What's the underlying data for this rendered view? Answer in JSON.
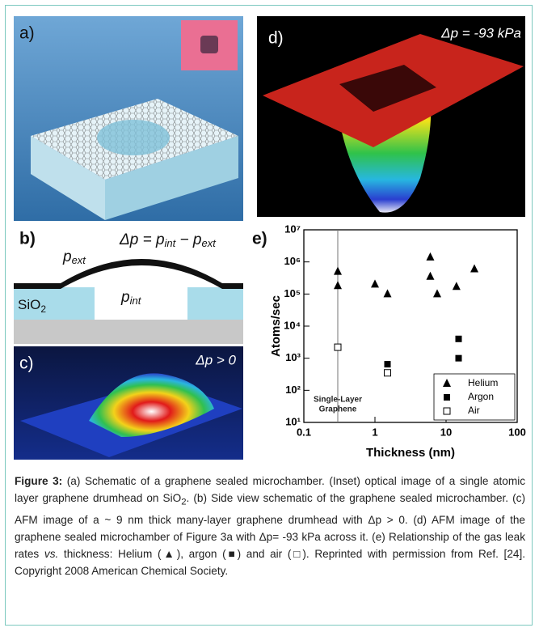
{
  "panels": {
    "a": {
      "label": "a)"
    },
    "b": {
      "label": "b)",
      "equation": [
        "Δp = p",
        "int",
        " − p",
        "ext"
      ],
      "p_ext": [
        "p",
        "ext"
      ],
      "p_int": [
        "p",
        "int"
      ],
      "substrate": [
        "SiO",
        "2"
      ]
    },
    "c": {
      "label": "c)",
      "annotation": "Δp > 0"
    },
    "d": {
      "label": "d)",
      "annotation": "Δp = -93 kPa"
    }
  },
  "chart_data": {
    "type": "scatter",
    "panel_label": "e)",
    "xlabel": "Thickness (nm)",
    "ylabel": "Atoms/sec",
    "xscale": "log",
    "yscale": "log",
    "xlim": [
      0.1,
      100
    ],
    "ylim": [
      10,
      10000000
    ],
    "xticks": [
      0.1,
      1,
      10,
      100
    ],
    "yticks": [
      {
        "value": 10,
        "label": "10¹"
      },
      {
        "value": 100,
        "label": "10²"
      },
      {
        "value": 1000,
        "label": "10³"
      },
      {
        "value": 10000,
        "label": "10⁴"
      },
      {
        "value": 100000,
        "label": "10⁵"
      },
      {
        "value": 1000000,
        "label": "10⁶"
      },
      {
        "value": 10000000,
        "label": "10⁷"
      }
    ],
    "vline": {
      "x": 0.3,
      "label": [
        "Single-Layer",
        "Graphene"
      ]
    },
    "legend": "lower right",
    "series": [
      {
        "name": "Helium",
        "marker": "triangle",
        "color": "#000000",
        "x": [
          0.3,
          0.3,
          1,
          1.5,
          6,
          6,
          7.5,
          14,
          25
        ],
        "values": [
          500000,
          180000,
          200000,
          100000,
          1400000,
          350000,
          100000,
          170000,
          600000
        ]
      },
      {
        "name": "Argon",
        "marker": "square",
        "color": "#000000",
        "x": [
          1.5,
          15,
          15
        ],
        "values": [
          650,
          4000,
          1000
        ]
      },
      {
        "name": "Air",
        "marker": "open-square",
        "color": "#000000",
        "x": [
          0.3,
          1.5
        ],
        "values": [
          2200,
          350
        ]
      }
    ]
  },
  "caption": [
    {
      "text": "Figure 3:",
      "style": "bold"
    },
    {
      "text": " (a) Schematic of a graphene sealed microchamber. (Inset) optical image of a single atomic layer graphene drumhead on SiO",
      "style": "normal"
    },
    {
      "text": "2",
      "style": "sub"
    },
    {
      "text": ". (b) Side view schematic of the graphene sealed microchamber. (c) AFM image of a ~ 9 nm thick many-layer graphene drumhead with Δp > 0. (d) AFM image of the graphene sealed microchamber of Figure 3a with Δp= -93 kPa across it. (e) Relationship of the gas leak rates ",
      "style": "normal"
    },
    {
      "text": "vs.",
      "style": "italic"
    },
    {
      "text": " thickness: Helium (▲), argon (■) and air (□). Reprinted with permission from Ref. [24]. Copyright 2008 American Chemical Society.",
      "style": "normal"
    }
  ]
}
